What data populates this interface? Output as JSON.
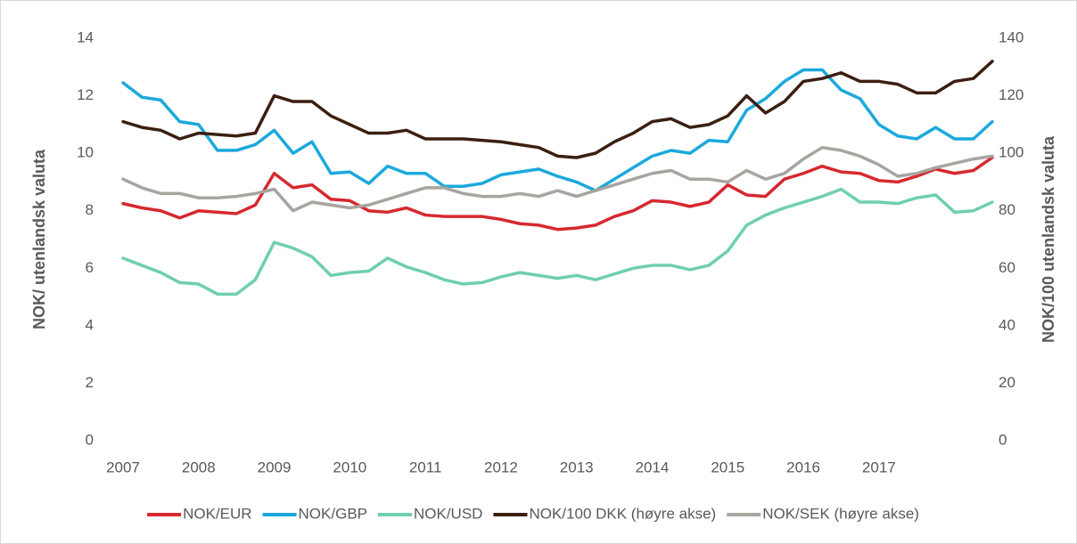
{
  "chart_data": {
    "type": "line",
    "ylabel": "NOK/ utenlandsk valuta",
    "y2label": "NOK/100 utenlandsk valuta",
    "categories": [
      "2007",
      null,
      null,
      null,
      "2008",
      null,
      null,
      null,
      "2009",
      null,
      null,
      null,
      "2010",
      null,
      null,
      null,
      "2011",
      null,
      null,
      null,
      "2012",
      null,
      null,
      null,
      "2013",
      null,
      null,
      null,
      "2014",
      null,
      null,
      null,
      "2015",
      null,
      null,
      null,
      "2016",
      null,
      null,
      null,
      "2017",
      null,
      null,
      null,
      null,
      null,
      null
    ],
    "ylim": [
      0,
      14
    ],
    "yticks": [
      0,
      2,
      4,
      6,
      8,
      10,
      12,
      14
    ],
    "y2lim": [
      0,
      140
    ],
    "y2ticks": [
      0,
      20,
      40,
      60,
      80,
      100,
      120,
      140
    ],
    "grid": false,
    "legend": "bottom",
    "series": [
      {
        "name": "NOK/EUR",
        "color": "#d7282f",
        "values": [
          8.25,
          8.1,
          8.0,
          7.75,
          8.0,
          7.95,
          7.9,
          8.2,
          9.3,
          8.8,
          8.9,
          8.4,
          8.35,
          8.0,
          7.95,
          8.1,
          7.85,
          7.8,
          7.8,
          7.8,
          7.7,
          7.55,
          7.5,
          7.35,
          7.4,
          7.5,
          7.8,
          8.0,
          8.35,
          8.3,
          8.15,
          8.3,
          8.9,
          8.55,
          8.5,
          9.1,
          9.3,
          9.55,
          9.35,
          9.3,
          9.05,
          9.0,
          9.2,
          9.45,
          9.3,
          9.4,
          9.85
        ]
      },
      {
        "name": "NOK/GBP",
        "color": "#1ba9dc",
        "values": [
          12.45,
          11.95,
          11.85,
          11.1,
          11.0,
          10.1,
          10.1,
          10.3,
          10.8,
          10.0,
          10.4,
          9.3,
          9.35,
          8.95,
          9.55,
          9.3,
          9.3,
          8.85,
          8.85,
          8.95,
          9.25,
          9.35,
          9.45,
          9.2,
          9.0,
          8.7,
          9.1,
          9.5,
          9.9,
          10.1,
          10.0,
          10.45,
          10.4,
          11.5,
          11.9,
          12.5,
          12.9,
          12.9,
          12.2,
          11.9,
          11.0,
          10.6,
          10.5,
          10.9,
          10.5,
          10.5,
          11.1
        ]
      },
      {
        "name": "NOK/USD",
        "color": "#6fcfae",
        "values": [
          6.35,
          6.1,
          5.85,
          5.5,
          5.45,
          5.1,
          5.1,
          5.6,
          6.9,
          6.7,
          6.4,
          5.75,
          5.85,
          5.9,
          6.35,
          6.05,
          5.85,
          5.6,
          5.45,
          5.5,
          5.7,
          5.85,
          5.75,
          5.65,
          5.75,
          5.6,
          5.8,
          6.0,
          6.1,
          6.1,
          5.95,
          6.1,
          6.6,
          7.5,
          7.85,
          8.1,
          8.3,
          8.5,
          8.75,
          8.3,
          8.3,
          8.25,
          8.45,
          8.55,
          7.95,
          8.0,
          8.3
        ]
      },
      {
        "name": "NOK/100 DKK (høyre akse)",
        "color": "#3b1f10",
        "axis": "y2",
        "values": [
          111,
          109,
          108,
          105,
          107,
          106.5,
          106,
          107,
          120,
          118,
          118,
          113,
          110,
          107,
          107,
          108,
          105,
          105,
          105,
          104.5,
          104,
          103,
          102,
          99,
          98.5,
          100,
          104,
          107,
          111,
          112,
          109,
          110,
          113,
          120,
          114,
          118,
          125,
          126,
          128,
          125,
          125,
          124,
          121,
          121,
          125,
          126,
          132
        ]
      },
      {
        "name": "NOK/SEK (høyre akse)",
        "color": "#a8a49f",
        "axis": "y2",
        "values": [
          91,
          88,
          86,
          86,
          84.5,
          84.5,
          85,
          86,
          87.5,
          80,
          83,
          82,
          81,
          82,
          84,
          86,
          88,
          88,
          86,
          85,
          85,
          86,
          85,
          87,
          85,
          87,
          89,
          91,
          93,
          94,
          91,
          91,
          90,
          94,
          91,
          93,
          98,
          102,
          101,
          99,
          96,
          92,
          93,
          95,
          96.5,
          98,
          99
        ]
      }
    ]
  }
}
